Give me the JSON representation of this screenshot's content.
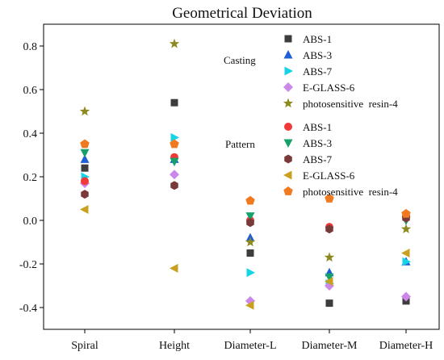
{
  "chart_data": {
    "type": "scatter",
    "title": "Geometrical Deviation",
    "xlabel": "",
    "ylabel": "",
    "categories": [
      "Spiral",
      "Height",
      "Diameter-L",
      "Diameter-M",
      "Diameter-H"
    ],
    "ylim": [
      -0.5,
      0.9
    ],
    "yticks": [
      "-0.4",
      "-0.2",
      "0.0",
      "0.2",
      "0.4",
      "0.6",
      "0.8"
    ],
    "ytick_values": [
      -0.4,
      -0.2,
      0.0,
      0.2,
      0.4,
      0.6,
      0.8
    ],
    "grid": false,
    "legend_placement": "top-right",
    "groups": [
      {
        "name": "Casting",
        "series": [
          {
            "name": "ABS-1",
            "marker": "square",
            "color": "#3d3d3d",
            "values": [
              0.24,
              0.54,
              -0.15,
              -0.38,
              -0.37
            ]
          },
          {
            "name": "ABS-3",
            "marker": "triangle-up",
            "color": "#1f5fd6",
            "values": [
              0.28,
              0.28,
              -0.08,
              -0.24,
              -0.19
            ]
          },
          {
            "name": "ABS-7",
            "marker": "triangle-right",
            "color": "#15d4e6",
            "values": [
              0.2,
              0.38,
              -0.24,
              -0.29,
              -0.19
            ]
          },
          {
            "name": "E-GLASS-6",
            "marker": "diamond",
            "color": "#cc88e8",
            "values": [
              0.17,
              0.21,
              -0.37,
              -0.3,
              -0.35
            ]
          },
          {
            "name": "photosensitive  resin-4",
            "marker": "star",
            "color": "#8c8a1e",
            "values": [
              0.5,
              0.81,
              -0.1,
              -0.17,
              -0.04
            ]
          }
        ]
      },
      {
        "name": "Pattern",
        "series": [
          {
            "name": "ABS-1",
            "marker": "circle",
            "color": "#f03a3a",
            "values": [
              0.18,
              0.29,
              0.0,
              -0.03,
              0.02
            ]
          },
          {
            "name": "ABS-3",
            "marker": "triangle-down",
            "color": "#16a06a",
            "values": [
              0.31,
              0.27,
              0.02,
              -0.26,
              0.0
            ]
          },
          {
            "name": "ABS-7",
            "marker": "hexagon",
            "color": "#7a3a3a",
            "values": [
              0.12,
              0.16,
              -0.01,
              -0.04,
              0.01
            ]
          },
          {
            "name": "E-GLASS-6",
            "marker": "triangle-left",
            "color": "#c9a020",
            "values": [
              0.05,
              -0.22,
              -0.39,
              -0.28,
              -0.15
            ]
          },
          {
            "name": "photosensitive  resin-4",
            "marker": "pentagon",
            "color": "#f07a20",
            "values": [
              0.35,
              0.35,
              0.09,
              0.1,
              0.03
            ]
          }
        ]
      }
    ]
  }
}
